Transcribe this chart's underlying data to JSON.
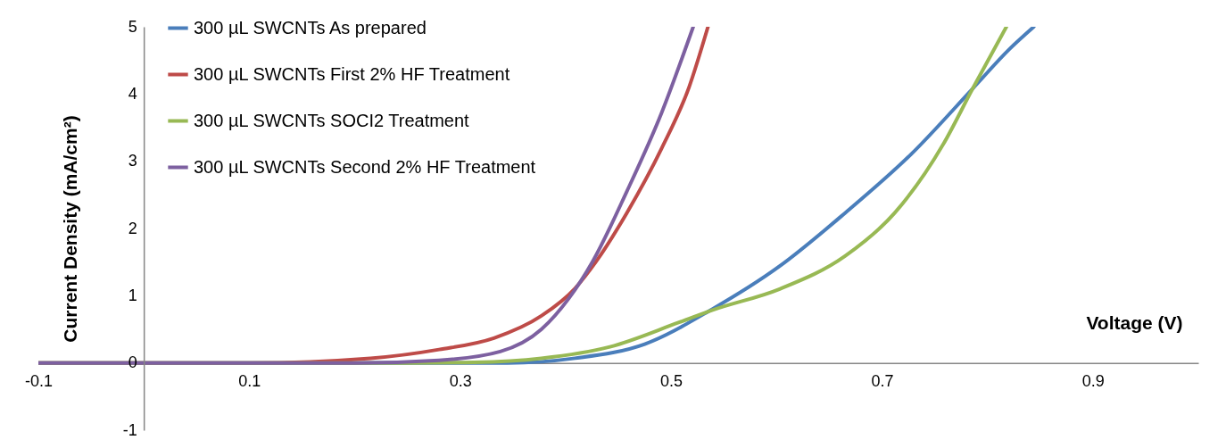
{
  "chart_data": {
    "type": "line",
    "xlabel": "Voltage (V)",
    "ylabel": "Current Density (mA/cm²)",
    "xlim": [
      -0.1,
      1.0
    ],
    "ylim": [
      -1,
      5
    ],
    "xticks": [
      -0.1,
      0.1,
      0.3,
      0.5,
      0.7,
      0.9
    ],
    "yticks": [
      -1,
      0,
      1,
      2,
      3,
      4,
      5
    ],
    "legend": "top left",
    "line_style": "solid",
    "marker": "none",
    "series": [
      {
        "name": "300 µL SWCNTs  As prepared",
        "color": "#4a7ebb",
        "x": [
          -0.1,
          0.1,
          0.3,
          0.345,
          0.409,
          0.475,
          0.539,
          0.603,
          0.665,
          0.728,
          0.786,
          0.821,
          0.844
        ],
        "values": [
          0,
          0,
          0,
          0,
          0.07,
          0.28,
          0.8,
          1.44,
          2.23,
          3.11,
          4.08,
          4.67,
          5.0
        ]
      },
      {
        "name": "300 µL SWCNTs First 2% HF Treatment",
        "color": "#be4b48",
        "x": [
          -0.1,
          0.1,
          0.215,
          0.28,
          0.332,
          0.377,
          0.409,
          0.429,
          0.458,
          0.491,
          0.517,
          0.535
        ],
        "values": [
          0,
          0,
          0.07,
          0.2,
          0.37,
          0.7,
          1.11,
          1.51,
          2.23,
          3.19,
          4.1,
          5.0
        ]
      },
      {
        "name": "300 µL SWCNTs SOCI2 Treatment",
        "color": "#98b954",
        "x": [
          -0.1,
          0.1,
          0.25,
          0.313,
          0.377,
          0.442,
          0.507,
          0.54,
          0.603,
          0.665,
          0.712,
          0.758,
          0.786,
          0.818
        ],
        "values": [
          0,
          0,
          0,
          0.01,
          0.07,
          0.24,
          0.6,
          0.79,
          1.1,
          1.59,
          2.23,
          3.25,
          4.08,
          5.0
        ]
      },
      {
        "name": "300 µL SWCNTs Second 2% HF Treatment",
        "color": "#7d60a0",
        "x": [
          -0.1,
          0.1,
          0.2,
          0.28,
          0.338,
          0.377,
          0.403,
          0.426,
          0.458,
          0.491,
          0.521
        ],
        "values": [
          0,
          0,
          0,
          0.04,
          0.17,
          0.5,
          0.96,
          1.52,
          2.55,
          3.72,
          5.0
        ]
      }
    ]
  }
}
